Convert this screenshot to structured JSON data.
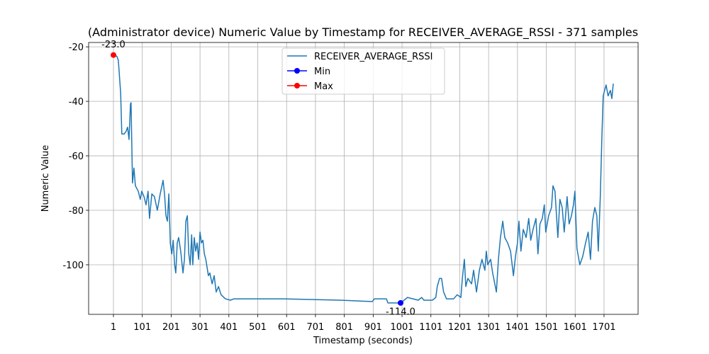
{
  "chart_data": {
    "type": "line",
    "title": "(Administrator device) Numeric Value by Timestamp for RECEIVER_AVERAGE_RSSI - 371 samples",
    "x_label": "Timestamp (seconds)",
    "y_label": "Numeric Value",
    "xlim": [
      -85,
      1819
    ],
    "ylim": [
      -118.2,
      -18.4
    ],
    "xticks": [
      1,
      101,
      201,
      301,
      401,
      501,
      601,
      701,
      801,
      901,
      1001,
      1101,
      1201,
      1301,
      1401,
      1501,
      1601,
      1701
    ],
    "yticks": [
      -20,
      -40,
      -60,
      -80,
      -100
    ],
    "grid": true,
    "legend": "upper center",
    "series": [
      {
        "name": "RECEIVER_AVERAGE_RSSI",
        "color": "#1f77b4",
        "x": [
          1,
          13,
          18,
          26,
          30,
          38,
          45,
          50,
          55,
          60,
          62,
          67,
          72,
          77,
          87,
          94,
          99,
          107,
          114,
          121,
          126,
          134,
          143,
          153,
          163,
          173,
          178,
          183,
          188,
          193,
          198,
          203,
          208,
          213,
          217,
          222,
          227,
          234,
          242,
          247,
          252,
          257,
          262,
          267,
          272,
          276,
          281,
          286,
          291,
          296,
          301,
          306,
          311,
          316,
          321,
          330,
          335,
          343,
          350,
          357,
          365,
          374,
          389,
          406,
          419,
          591,
          787,
          898,
          905,
          947,
          952,
          984,
          996,
          1008,
          1020,
          1057,
          1069,
          1077,
          1106,
          1118,
          1123,
          1131,
          1138,
          1145,
          1155,
          1180,
          1192,
          1205,
          1210,
          1217,
          1222,
          1229,
          1242,
          1249,
          1259,
          1269,
          1278,
          1288,
          1293,
          1298,
          1308,
          1315,
          1328,
          1335,
          1342,
          1350,
          1357,
          1367,
          1377,
          1387,
          1394,
          1401,
          1406,
          1413,
          1421,
          1431,
          1440,
          1447,
          1455,
          1465,
          1472,
          1479,
          1487,
          1494,
          1499,
          1509,
          1519,
          1524,
          1531,
          1541,
          1548,
          1556,
          1563,
          1573,
          1580,
          1588,
          1595,
          1600,
          1607,
          1617,
          1627,
          1637,
          1646,
          1654,
          1661,
          1669,
          1676,
          1681,
          1688,
          1693,
          1698,
          1708,
          1715,
          1723,
          1728,
          1733
        ],
        "values": [
          -23,
          -23.5,
          -25,
          -37,
          -52,
          -52,
          -51,
          -49.5,
          -54,
          -41,
          -40.5,
          -70,
          -64.5,
          -71,
          -73,
          -76,
          -73,
          -75,
          -78,
          -73,
          -83,
          -74,
          -75,
          -80,
          -74,
          -69,
          -74,
          -82,
          -84,
          -74,
          -92,
          -96,
          -91,
          -100,
          -103,
          -92,
          -90,
          -95,
          -103,
          -98,
          -84,
          -82,
          -96,
          -100,
          -89,
          -100,
          -90,
          -95,
          -92,
          -98,
          -88,
          -92,
          -91,
          -96,
          -98,
          -104,
          -103,
          -107,
          -104,
          -110,
          -108,
          -111,
          -112.5,
          -113,
          -112.5,
          -112.5,
          -113,
          -113.5,
          -112.5,
          -112.5,
          -114,
          -114,
          -114,
          -113,
          -112,
          -113,
          -112,
          -113,
          -113,
          -112,
          -108,
          -105,
          -105,
          -110,
          -112.5,
          -112.5,
          -111,
          -112,
          -105,
          -98,
          -108,
          -105,
          -107,
          -102,
          -110,
          -102,
          -98,
          -102,
          -95,
          -100,
          -98,
          -103,
          -110,
          -98,
          -90,
          -84,
          -90,
          -92,
          -95,
          -104,
          -97,
          -92,
          -84,
          -95,
          -87,
          -90,
          -83,
          -91,
          -87,
          -83,
          -96,
          -85,
          -83,
          -78,
          -88,
          -82,
          -79,
          -71,
          -73,
          -90,
          -76,
          -79,
          -88,
          -75,
          -85,
          -82,
          -78,
          -73,
          -94,
          -100,
          -97,
          -92,
          -88,
          -98,
          -84,
          -79,
          -82,
          -95,
          -75,
          -55,
          -38,
          -34,
          -38,
          -36,
          -39,
          -33.5
        ]
      },
      {
        "name": "Min",
        "color": "#0000ff",
        "x": [
          996
        ],
        "values": [
          -114
        ],
        "value_labels": [
          "-114.0"
        ]
      },
      {
        "name": "Max",
        "color": "#ff0000",
        "x": [
          1
        ],
        "values": [
          -23
        ],
        "value_labels": [
          "-23.0"
        ]
      }
    ]
  }
}
